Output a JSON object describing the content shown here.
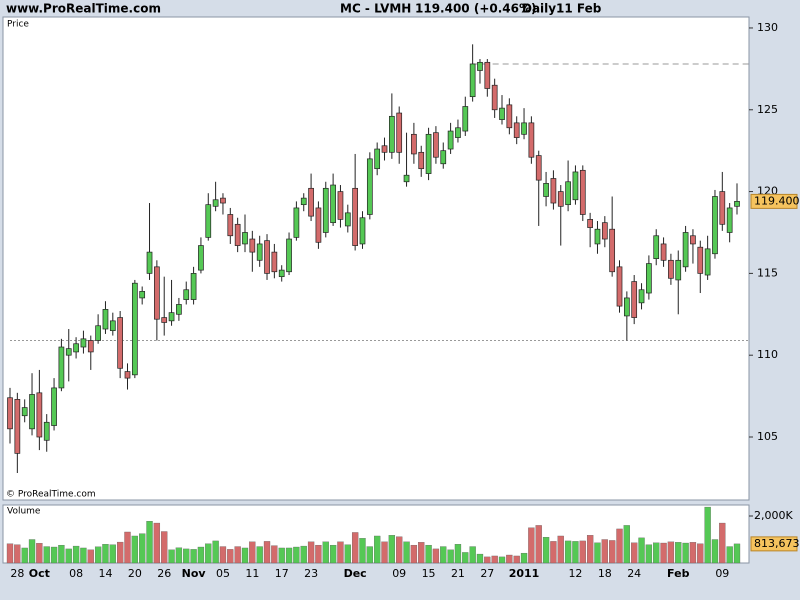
{
  "header": {
    "site": "www.ProRealTime.com",
    "symbol": "MC - LVMH",
    "quote": "119.400 (+0.46%)",
    "period": "Daily",
    "date": "11 Feb"
  },
  "chart_data": [
    {
      "type": "candlestick",
      "title": "Price",
      "credit": "© ProRealTime.com",
      "up_color": "#55c855",
      "down_color": "#d36b6b",
      "categories": [
        null,
        "28",
        null,
        null,
        "Oct",
        null,
        null,
        null,
        null,
        "08",
        null,
        null,
        null,
        "14",
        null,
        null,
        null,
        "20",
        null,
        null,
        null,
        "26",
        null,
        null,
        null,
        "Nov",
        null,
        null,
        null,
        "05",
        null,
        null,
        null,
        "11",
        null,
        null,
        null,
        "17",
        null,
        null,
        null,
        "23",
        null,
        null,
        null,
        null,
        null,
        "Dec",
        null,
        null,
        null,
        null,
        null,
        "09",
        null,
        null,
        null,
        "15",
        null,
        null,
        null,
        "21",
        null,
        null,
        null,
        "27",
        null,
        null,
        null,
        null,
        "2011",
        null,
        null,
        null,
        null,
        null,
        null,
        "12",
        null,
        null,
        null,
        "18",
        null,
        null,
        null,
        "24",
        null,
        null,
        null,
        null,
        null,
        "Feb",
        null,
        null,
        null,
        null,
        null,
        "09",
        null,
        null
      ],
      "open": [
        107.4,
        107.3,
        106.3,
        105.5,
        107.7,
        104.8,
        105.7,
        108,
        110,
        110.2,
        110.5,
        110.9,
        110.9,
        111.6,
        111.5,
        112.3,
        109,
        108.8,
        113.5,
        115,
        115.4,
        112.3,
        112.1,
        112.5,
        113.4,
        113.4,
        115.2,
        117.2,
        119.1,
        119.6,
        118.6,
        118,
        116.8,
        117.1,
        115.8,
        117,
        116.3,
        114.8,
        115.1,
        117.2,
        119.2,
        120.2,
        119,
        117.5,
        118.1,
        120,
        117.9,
        120.2,
        116.8,
        118.6,
        121.4,
        122.8,
        122.4,
        124.8,
        120.6,
        123.5,
        122.4,
        121.1,
        123.6,
        121.7,
        122.6,
        123.3,
        123.7,
        125.8,
        127.4,
        127.9,
        126.5,
        124.4,
        125.3,
        124.2,
        123.5,
        124.2,
        122.2,
        119.7,
        120.8,
        120,
        119.2,
        119.5,
        121.3,
        118.3,
        116.8,
        118.1,
        117.7,
        115.4,
        112.4,
        114.5,
        113.2,
        113.8,
        115.9,
        116.8,
        115.8,
        114.6,
        115.4,
        117.3,
        116.6,
        114.9,
        116.2,
        120,
        117.5,
        119.1
      ],
      "high": [
        108,
        107.7,
        107.3,
        108.9,
        109.1,
        106.4,
        108.6,
        111,
        111.6,
        111.1,
        111.5,
        111.2,
        112.5,
        113.3,
        112.6,
        112.7,
        109.5,
        114.6,
        114.2,
        119.3,
        115.8,
        114.8,
        114.6,
        113.5,
        114.5,
        115.4,
        117.2,
        119.9,
        120.6,
        119.9,
        119,
        118.4,
        118.6,
        117.6,
        117.3,
        117.4,
        116.8,
        115.5,
        117.5,
        119.4,
        119.9,
        121.1,
        119.4,
        120.6,
        121.1,
        120.4,
        119.2,
        122.3,
        118.8,
        122.4,
        123,
        123.3,
        126,
        125.2,
        123.6,
        124.2,
        122.8,
        123.9,
        124,
        123,
        124.2,
        124.4,
        125.8,
        129,
        128.1,
        128.1,
        126.9,
        125.9,
        125.7,
        124.6,
        125.1,
        124.6,
        122.5,
        121.2,
        121.3,
        120.4,
        121.9,
        121.6,
        121.6,
        118.7,
        118.2,
        118.5,
        119.7,
        115.8,
        113.9,
        114.9,
        114.4,
        116.1,
        117.7,
        117.2,
        116.2,
        116.4,
        117.9,
        117.7,
        117,
        117.3,
        120.1,
        121.2,
        119.3,
        120.5
      ],
      "low": [
        104.6,
        102.8,
        105.9,
        105.1,
        104.2,
        104.1,
        105.4,
        107.8,
        108.4,
        109.8,
        110.1,
        109.1,
        110.7,
        111.3,
        111.2,
        108.6,
        107.9,
        108.6,
        113.1,
        114.6,
        110.9,
        111.2,
        111.8,
        112.1,
        113.1,
        113.1,
        115,
        117,
        118.8,
        118.6,
        116.8,
        116.3,
        116.3,
        115.1,
        115.4,
        114.6,
        114.7,
        114.5,
        114.9,
        117,
        118.8,
        118.2,
        116.5,
        117.2,
        117.9,
        117.8,
        117.5,
        116.4,
        116.5,
        118.3,
        121,
        121.9,
        122,
        121.7,
        120.3,
        121.7,
        120.9,
        120.7,
        121.7,
        121.4,
        122.3,
        123,
        123.4,
        125.5,
        126.6,
        125.8,
        124.5,
        124.1,
        123.5,
        122.9,
        123.2,
        121.7,
        117.9,
        119.1,
        118.9,
        116.7,
        118.8,
        119.2,
        118.2,
        116.6,
        116.2,
        116.6,
        114.8,
        112.6,
        110.9,
        111.9,
        112.8,
        113.4,
        115.5,
        115.4,
        114.3,
        112.5,
        115.1,
        115.6,
        113.8,
        114.6,
        115.9,
        117.6,
        116.9,
        118.6
      ],
      "close": [
        105.5,
        104,
        106.8,
        107.6,
        105,
        105.9,
        108,
        110.5,
        110.4,
        110.7,
        111,
        110.2,
        111.8,
        112.8,
        112.1,
        109.2,
        108.6,
        114.4,
        113.9,
        116.3,
        112.2,
        112,
        112.6,
        113.1,
        114,
        115,
        116.7,
        119.2,
        119.5,
        119.3,
        117.3,
        116.7,
        117.5,
        116.3,
        116.8,
        115,
        115.1,
        115.2,
        117.1,
        119,
        119.6,
        118.5,
        116.9,
        120.2,
        120.4,
        118.3,
        118.7,
        116.7,
        118.4,
        122,
        122.6,
        122.4,
        124.6,
        122.4,
        121,
        122.3,
        121.4,
        123.5,
        122.1,
        122.5,
        123.7,
        123.9,
        125.2,
        127.8,
        127.9,
        126.3,
        125,
        125.1,
        123.9,
        123.3,
        124.2,
        122.1,
        120.7,
        120.5,
        119.3,
        119.1,
        120.6,
        121.2,
        118.6,
        117.8,
        117.7,
        117.1,
        115.1,
        113,
        113.5,
        112.3,
        114,
        115.6,
        117.3,
        115.8,
        114.7,
        115.8,
        117.5,
        116.8,
        115,
        116.5,
        119.7,
        118,
        119,
        119.4
      ],
      "last_label": {
        "value": 119.4,
        "label": "119.400"
      },
      "ref_lines": [
        {
          "value": 127.8,
          "style": "dashed"
        },
        {
          "value": 110.9,
          "style": "dotted"
        }
      ],
      "ylim": [
        101.15,
        130.67
      ],
      "yticks": [
        105,
        110,
        115,
        120,
        125,
        130
      ]
    },
    {
      "type": "volume",
      "title": "Volume",
      "title_color": "#33aa33",
      "values": [
        820000,
        780000,
        640000,
        1000000,
        840000,
        700000,
        680000,
        760000,
        600000,
        720000,
        640000,
        560000,
        690000,
        800000,
        780000,
        890000,
        1320000,
        1150000,
        1250000,
        1780000,
        1700000,
        1340000,
        560000,
        650000,
        600000,
        580000,
        680000,
        820000,
        940000,
        700000,
        580000,
        700000,
        640000,
        900000,
        700000,
        920000,
        740000,
        640000,
        640000,
        680000,
        720000,
        900000,
        760000,
        900000,
        760000,
        900000,
        780000,
        1300000,
        1050000,
        700000,
        1150000,
        900000,
        1180000,
        1120000,
        900000,
        760000,
        880000,
        760000,
        600000,
        700000,
        560000,
        800000,
        450000,
        700000,
        380000,
        260000,
        300000,
        260000,
        340000,
        300000,
        420000,
        1500000,
        1600000,
        1100000,
        920000,
        1150000,
        940000,
        920000,
        940000,
        1180000,
        860000,
        1000000,
        960000,
        1450000,
        1600000,
        860000,
        1070000,
        780000,
        860000,
        850000,
        900000,
        880000,
        850000,
        880000,
        820000,
        2380000,
        1000000,
        1700000,
        700000,
        813673
      ],
      "last_label": {
        "value": 813673,
        "label": "813,673"
      },
      "ylim": [
        0,
        2468000
      ],
      "yticks": [
        {
          "value": 2000000,
          "label": "2,000K"
        }
      ]
    }
  ]
}
